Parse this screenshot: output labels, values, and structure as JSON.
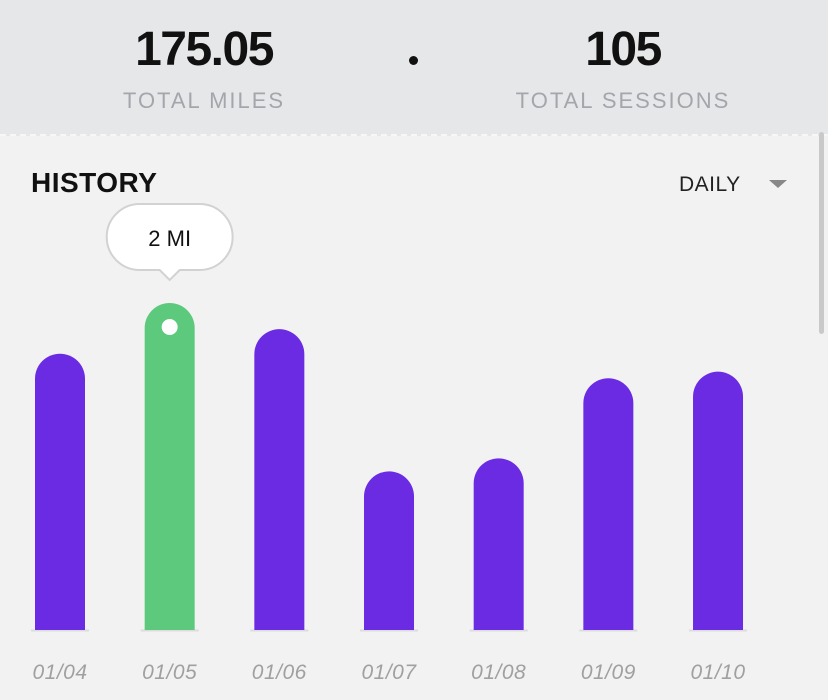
{
  "stats": {
    "miles_value": "175.05",
    "miles_label": "TOTAL MILES",
    "sessions_value": "105",
    "sessions_label": "TOTAL SESSIONS"
  },
  "history": {
    "title": "HISTORY",
    "period": "DAILY"
  },
  "tooltip": {
    "text": "2 MI",
    "index": 1
  },
  "colors": {
    "bar": "#6a2be3",
    "highlight": "#5dc97d",
    "baseline": "#dcdcdc",
    "tick": "#a0a0a0"
  },
  "chart_data": {
    "type": "bar",
    "categories": [
      "01/04",
      "01/05",
      "01/06",
      "01/07",
      "01/08",
      "01/09",
      "01/10"
    ],
    "values": [
      1.69,
      2.0,
      1.84,
      0.97,
      1.05,
      1.54,
      1.58
    ],
    "highlighted_index": 1,
    "ylim": [
      0,
      2.0
    ],
    "grid": false
  }
}
